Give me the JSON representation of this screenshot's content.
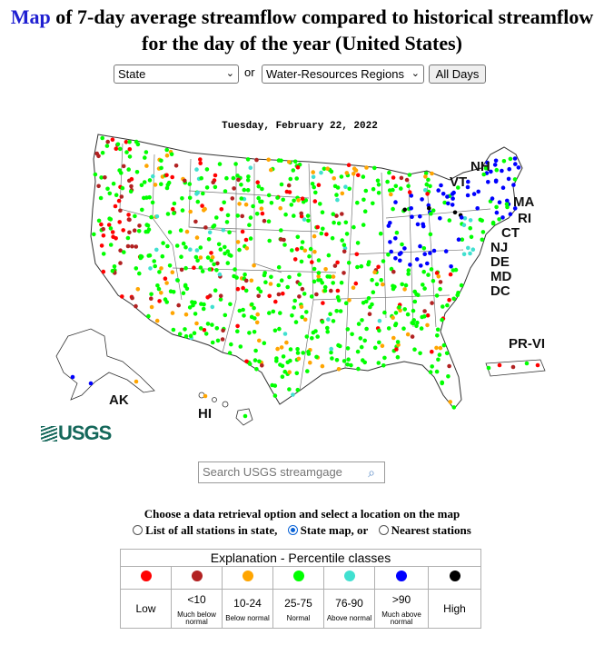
{
  "title": {
    "link_text": "Map",
    "rest": " of 7-day average streamflow compared to historical streamflow for the day of the year (United States)"
  },
  "controls": {
    "state_select": "State",
    "or_text": "or",
    "region_select": "Water-Resources Regions",
    "all_days_button": "All Days"
  },
  "map": {
    "date": "Tuesday, February 22, 2022",
    "labels": {
      "nh": "NH",
      "vt": "VT",
      "ma": "MA",
      "ri": "RI",
      "ct": "CT",
      "nj": "NJ",
      "de": "DE",
      "md": "MD",
      "dc": "DC",
      "prvi": "PR-VI",
      "ak": "AK",
      "hi": "HI"
    },
    "logo": "USGS"
  },
  "search": {
    "placeholder": "Search USGS streamgage"
  },
  "retrieval": {
    "instruction": "Choose a data retrieval option and select a location on the map",
    "options": [
      "List of all stations in state,",
      "State map, or",
      "Nearest stations"
    ],
    "selected_index": 1
  },
  "legend": {
    "title": "Explanation - Percentile classes",
    "classes": [
      {
        "color": "#ff0000",
        "label": "Low",
        "sub": ""
      },
      {
        "color": "#b22222",
        "label": "<10",
        "sub": "Much below normal"
      },
      {
        "color": "#ffa500",
        "label": "10-24",
        "sub": "Below normal"
      },
      {
        "color": "#00ff00",
        "label": "25-75",
        "sub": "Normal"
      },
      {
        "color": "#40e0d0",
        "label": "76-90",
        "sub": "Above normal"
      },
      {
        "color": "#0000ff",
        "label": ">90",
        "sub": "Much above normal"
      },
      {
        "color": "#000000",
        "label": "High",
        "sub": ""
      }
    ]
  }
}
